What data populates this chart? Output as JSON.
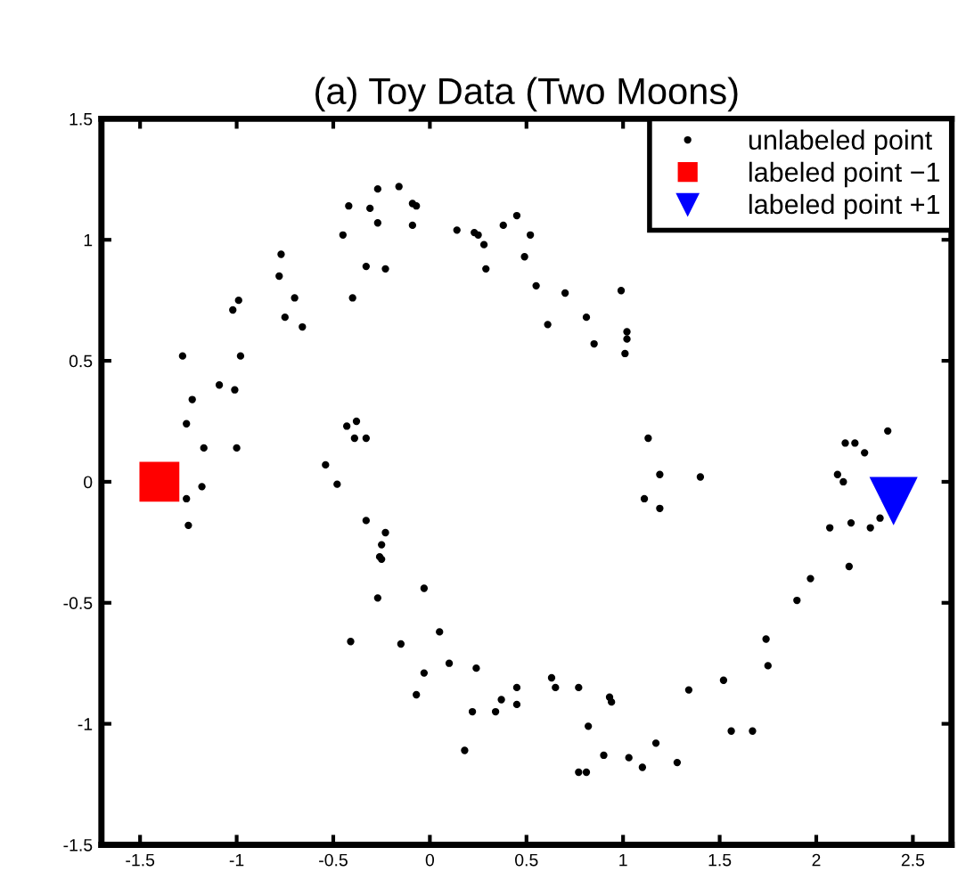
{
  "chart_data": {
    "type": "scatter",
    "title": "(a) Toy Data (Two Moons)",
    "xlim": [
      -1.7,
      2.7
    ],
    "ylim": [
      -1.5,
      1.5
    ],
    "xticks": [
      -1.5,
      -1,
      -0.5,
      0,
      0.5,
      1,
      1.5,
      2,
      2.5
    ],
    "yticks": [
      -1.5,
      -1,
      -0.5,
      0,
      0.5,
      1,
      1.5
    ],
    "grid": false,
    "legend": "top right",
    "series": [
      {
        "name": "unlabeled point",
        "color": "#000000",
        "marker": "circle",
        "x": [
          -1.28,
          -1.26,
          -1.23,
          -1.17,
          -1.09,
          -1.01,
          -1.0,
          -0.98,
          -1.02,
          -0.99,
          -0.77,
          -0.78,
          -0.7,
          -0.75,
          -0.66,
          -0.45,
          -0.42,
          -0.4,
          -0.33,
          -0.31,
          -0.27,
          -0.27,
          -0.23,
          -0.16,
          -0.09,
          -0.07,
          -0.09,
          0.14,
          0.23,
          0.25,
          0.28,
          0.29,
          0.38,
          0.45,
          0.52,
          0.49,
          0.55,
          0.7,
          0.99,
          0.61,
          0.81,
          0.85,
          1.02,
          1.02,
          1.01,
          1.13,
          2.15,
          2.2,
          2.25,
          2.37,
          1.19,
          1.4,
          1.11,
          1.19,
          2.11,
          2.14,
          2.07,
          2.18,
          2.28,
          2.33,
          2.17,
          1.97,
          1.9,
          1.74,
          1.75,
          1.52,
          1.56,
          1.67,
          1.34,
          1.28,
          1.17,
          1.1,
          1.03,
          0.9,
          0.77,
          0.81,
          0.82,
          0.93,
          0.94,
          0.77,
          0.63,
          0.65,
          0.45,
          0.45,
          -0.43,
          -0.38,
          -0.39,
          -0.33,
          -0.54,
          -0.48,
          -1.26,
          -1.18,
          -1.25,
          -0.33,
          -0.23,
          -0.25,
          -0.26,
          -0.25,
          -0.27,
          -0.03,
          -0.41,
          -0.15,
          0.05,
          0.1,
          -0.03,
          0.24,
          -0.07,
          0.22,
          0.34,
          0.37,
          0.18
        ],
        "values": [
          0.52,
          0.24,
          0.34,
          0.14,
          0.4,
          0.38,
          0.14,
          0.52,
          0.71,
          0.75,
          0.94,
          0.85,
          0.76,
          0.68,
          0.64,
          1.02,
          1.14,
          0.76,
          0.89,
          1.13,
          1.21,
          1.07,
          0.88,
          1.22,
          1.15,
          1.14,
          1.06,
          1.04,
          1.03,
          1.02,
          0.98,
          0.88,
          1.06,
          1.1,
          1.02,
          0.93,
          0.81,
          0.78,
          0.79,
          0.65,
          0.68,
          0.57,
          0.62,
          0.59,
          0.53,
          0.18,
          0.16,
          0.16,
          0.12,
          0.21,
          0.03,
          0.02,
          -0.07,
          -0.11,
          0.03,
          0.0,
          -0.19,
          -0.17,
          -0.19,
          -0.15,
          -0.35,
          -0.4,
          -0.49,
          -0.65,
          -0.76,
          -0.82,
          -1.03,
          -1.03,
          -0.86,
          -1.16,
          -1.08,
          -1.18,
          -1.14,
          -1.13,
          -1.2,
          -1.2,
          -1.01,
          -0.89,
          -0.91,
          -0.85,
          -0.81,
          -0.85,
          -0.85,
          -0.92,
          0.23,
          0.25,
          0.18,
          0.18,
          0.07,
          -0.01,
          -0.07,
          -0.02,
          -0.18,
          -0.16,
          -0.21,
          -0.26,
          -0.31,
          -0.32,
          -0.48,
          -0.44,
          -0.66,
          -0.67,
          -0.62,
          -0.75,
          -0.79,
          -0.77,
          -0.88,
          -0.95,
          -0.95,
          -0.9,
          -1.11
        ]
      },
      {
        "name": "labeled point −1",
        "color": "#ff0000",
        "marker": "square",
        "x": [
          -1.4
        ],
        "values": [
          0.0
        ]
      },
      {
        "name": "labeled point +1",
        "color": "#0000ff",
        "marker": "triangle",
        "x": [
          2.4
        ],
        "values": [
          -0.08
        ]
      }
    ]
  }
}
